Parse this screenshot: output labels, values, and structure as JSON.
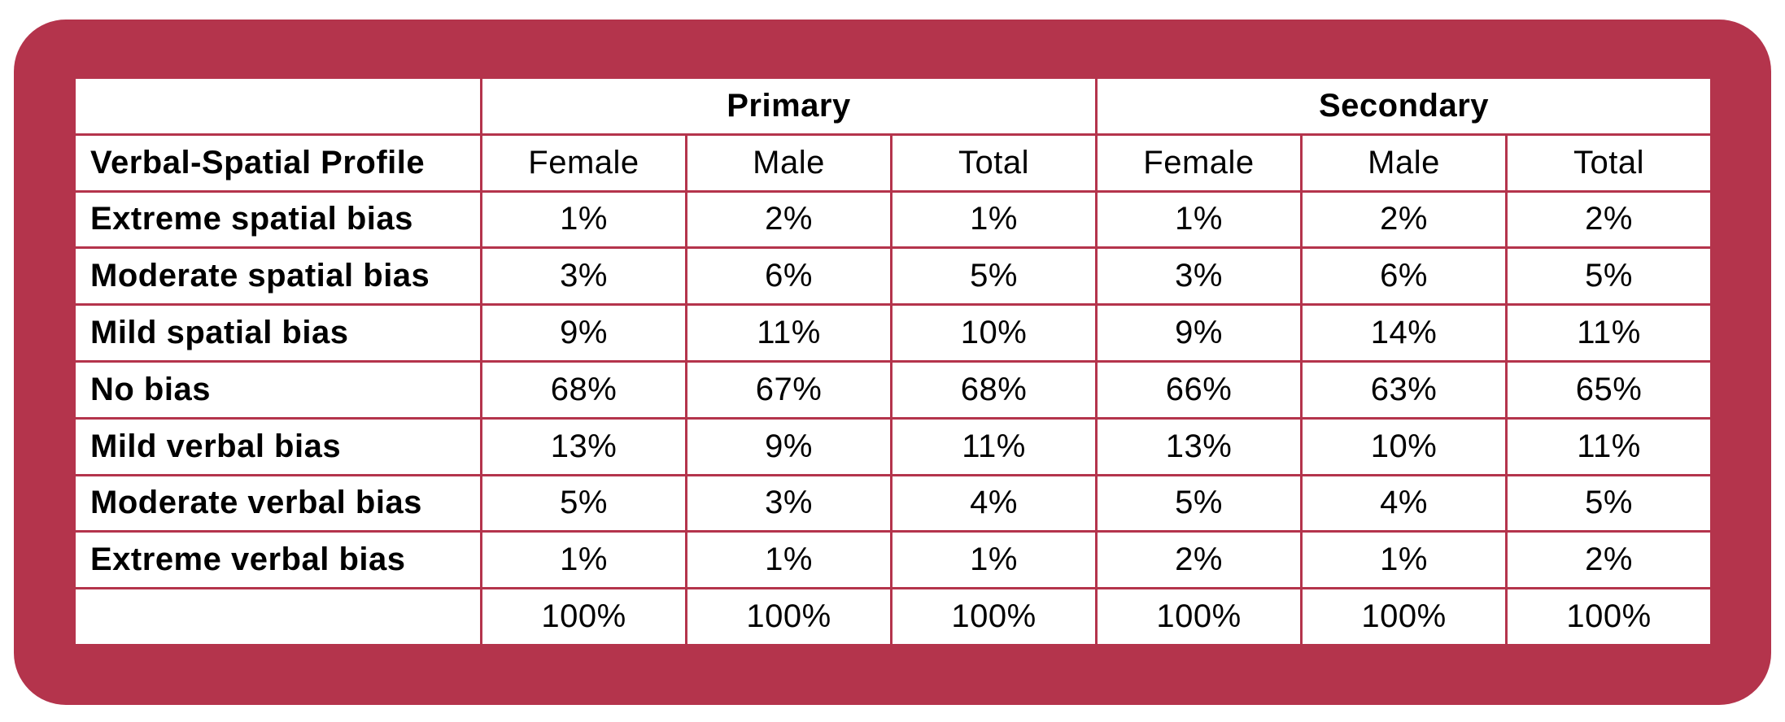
{
  "table": {
    "groups": [
      "Primary",
      "Secondary"
    ],
    "profile_header": "Verbal-Spatial Profile",
    "subheaders": [
      "Female",
      "Male",
      "Total",
      "Female",
      "Male",
      "Total"
    ],
    "rows": [
      {
        "label": "Extreme spatial bias",
        "values": [
          "1%",
          "2%",
          "1%",
          "1%",
          "2%",
          "2%"
        ]
      },
      {
        "label": "Moderate spatial bias",
        "values": [
          "3%",
          "6%",
          "5%",
          "3%",
          "6%",
          "5%"
        ]
      },
      {
        "label": "Mild spatial bias",
        "values": [
          "9%",
          "11%",
          "10%",
          "9%",
          "14%",
          "11%"
        ]
      },
      {
        "label": "No bias",
        "values": [
          "68%",
          "67%",
          "68%",
          "66%",
          "63%",
          "65%"
        ]
      },
      {
        "label": "Mild verbal bias",
        "values": [
          "13%",
          "9%",
          "11%",
          "13%",
          "10%",
          "11%"
        ]
      },
      {
        "label": "Moderate verbal bias",
        "values": [
          "5%",
          "3%",
          "4%",
          "5%",
          "4%",
          "5%"
        ]
      },
      {
        "label": "Extreme verbal bias",
        "values": [
          "1%",
          "1%",
          "1%",
          "2%",
          "1%",
          "2%"
        ]
      }
    ],
    "totals": [
      "100%",
      "100%",
      "100%",
      "100%",
      "100%",
      "100%"
    ]
  },
  "colors": {
    "frame": "#b4344c",
    "cell_background": "#ffffff",
    "text": "#000000"
  }
}
